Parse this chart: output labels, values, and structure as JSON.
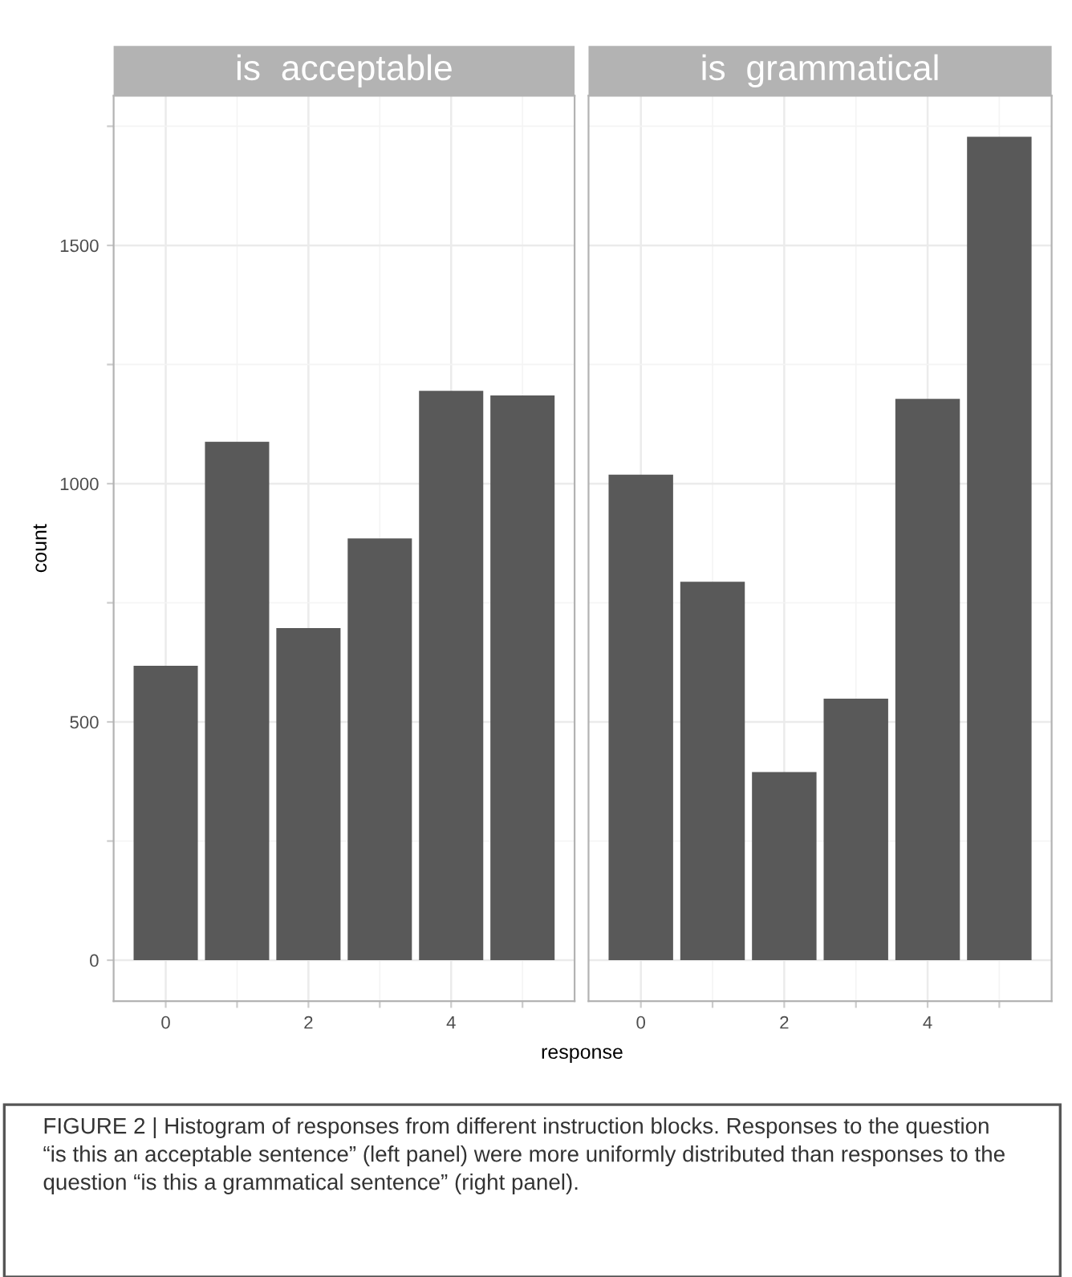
{
  "chart_data": [
    {
      "type": "bar",
      "title": "is  acceptable",
      "xlabel": "response",
      "ylabel": "count",
      "x": [
        0,
        1,
        2,
        3,
        4,
        5
      ],
      "values": [
        618,
        1088,
        697,
        885,
        1195,
        1185
      ],
      "color": "#595959",
      "xlim": [
        -0.73,
        5.73
      ],
      "ylim": [
        -86,
        1814
      ],
      "xticks": [
        0,
        {
          "value": 1,
          "label": null
        },
        2,
        {
          "value": 3,
          "label": null
        },
        4,
        {
          "value": 5,
          "label": null
        }
      ],
      "yticks": [
        0,
        {
          "value": 250,
          "label": null
        },
        500,
        {
          "value": 750,
          "label": null
        },
        1000,
        {
          "value": 1250,
          "label": null
        },
        1500,
        {
          "value": 1750,
          "label": null
        }
      ],
      "grid": true,
      "annotations": [
        "FIGURE 2 | Histogram of responses from different instruction blocks. Responses to the question “is this an acceptable sentence” (left panel) were more uniformly distributed than responses to the question “is this a grammatical sentence” (right panel)."
      ]
    },
    {
      "type": "bar",
      "title": "is  grammatical",
      "x": [
        0,
        1,
        2,
        3,
        4,
        5
      ],
      "values": [
        1019,
        794,
        395,
        549,
        1178,
        1728
      ],
      "color": "#595959",
      "xlim": [
        -0.73,
        5.73
      ],
      "ylim": [
        -86,
        1814
      ],
      "xticks": [
        0,
        {
          "value": 1,
          "label": null
        },
        2,
        {
          "value": 3,
          "label": null
        },
        4,
        {
          "value": 5,
          "label": null
        }
      ],
      "yticks": [
        0,
        {
          "value": 250,
          "label": null
        },
        500,
        {
          "value": 750,
          "label": null
        },
        1000,
        {
          "value": 1250,
          "label": null
        },
        1500,
        {
          "value": 1750,
          "label": null
        }
      ],
      "grid": true,
      "tick_labels": "x"
    }
  ]
}
